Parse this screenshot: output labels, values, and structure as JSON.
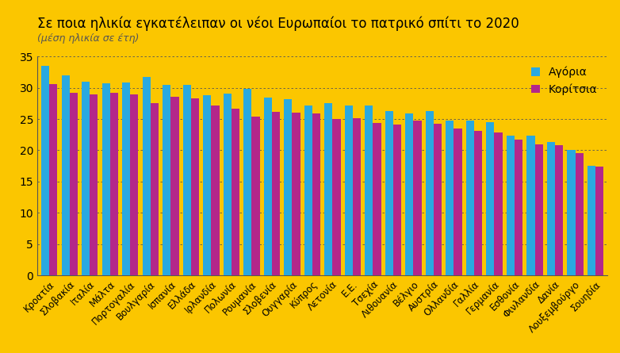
{
  "chart_data": {
    "type": "bar",
    "title": "Σε ποια ηλικία εγκατέλειπαν οι νέοι Ευρωπαίοι το πατρικό σπίτι το 2020",
    "subtitle": "(μέση ηλικία σε έτη)",
    "categories": [
      "Κροατία",
      "Σλοβακία",
      "Ιταλία",
      "Μάλτα",
      "Πορτογαλία",
      "Βουλγαρία",
      "Ισπανία",
      "Ελλάδα",
      "Ιρλανδία",
      "Πολωνία",
      "Ρουμανία",
      "Σλοβενία",
      "Ουγγαρία",
      "Κύπρος",
      "Λετονία",
      "Ε.Ε.",
      "Τσεχία",
      "Λιθουανία",
      "Βέλγιο",
      "Αυστρία",
      "Ολλανδία",
      "Γαλλία",
      "Γερμανία",
      "Εσθονία",
      "Φινλανδία",
      "Δανία",
      "Λουξεμβούργο",
      "Σουηδία"
    ],
    "series": [
      {
        "name": "Αγόρια",
        "color": "#29a9e0",
        "values": [
          33.5,
          32.0,
          31.0,
          30.7,
          30.8,
          31.7,
          30.4,
          30.4,
          28.8,
          29.0,
          29.8,
          28.4,
          28.2,
          27.2,
          27.6,
          27.2,
          27.1,
          26.3,
          25.9,
          26.3,
          24.8,
          24.7,
          24.5,
          22.3,
          22.4,
          21.3,
          20.0,
          17.5
        ]
      },
      {
        "name": "Κορίτσια",
        "color": "#b3278a",
        "values": [
          30.6,
          29.2,
          28.9,
          29.2,
          28.9,
          27.6,
          28.6,
          28.3,
          27.1,
          26.6,
          25.4,
          26.1,
          26.0,
          25.9,
          25.0,
          25.1,
          24.4,
          24.1,
          24.7,
          24.3,
          23.5,
          23.1,
          22.8,
          21.7,
          21.0,
          20.8,
          19.5,
          17.4
        ]
      }
    ],
    "ylim": [
      0,
      35
    ],
    "yticks": [
      0,
      5,
      10,
      15,
      20,
      25,
      30,
      35
    ],
    "grid": true,
    "legend": "upper right"
  }
}
